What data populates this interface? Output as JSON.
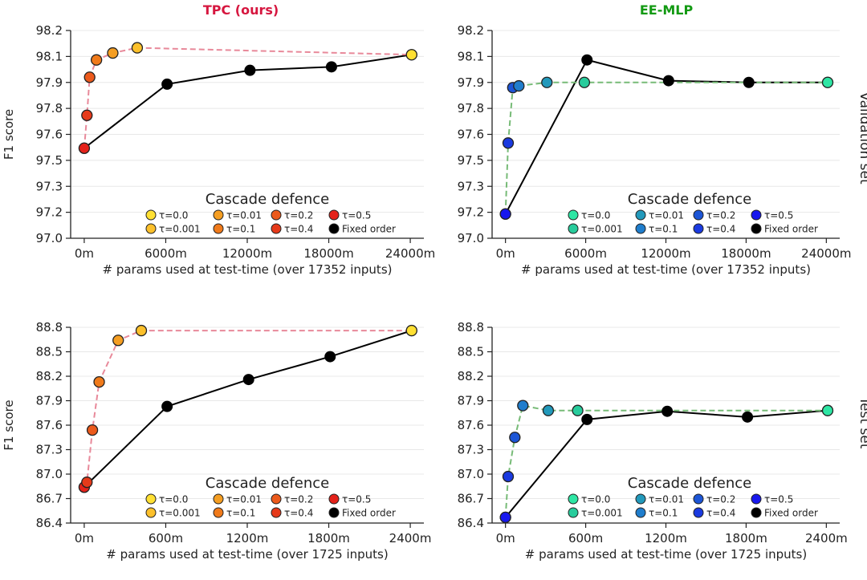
{
  "row_labels": [
    "Validation set",
    "Test set"
  ],
  "legend_title": "Cascade defence",
  "colors": {
    "tpc_line": "#e8899a",
    "ee_line": "#77bb77",
    "fixed": "#000000",
    "tpc_title": "#d6163f",
    "ee_title": "#139a13"
  },
  "chart_data": [
    {
      "id": "tpc-val",
      "type": "scatter",
      "title": "TPC (ours)",
      "title_color": "#d6163f",
      "show_title": true,
      "xlabel": "# params used at test-time (over 17352 inputs)",
      "ylabel": "F1 score",
      "xlim": [
        -1000,
        25000
      ],
      "ylim": [
        97.0,
        98.2
      ],
      "xticks": [
        0,
        6000,
        12000,
        18000,
        24000
      ],
      "xtick_labels": [
        "0m",
        "6000m",
        "12000m",
        "18000m",
        "24000m"
      ],
      "yticks": [
        97.0,
        97.15,
        97.3,
        97.45,
        97.6,
        97.75,
        97.9,
        98.05,
        98.2
      ],
      "ytick_labels": [
        "97.0",
        "97.2",
        "97.3",
        "97.5",
        "97.6",
        "97.8",
        "97.9",
        "98.1",
        "98.2"
      ],
      "cascade_color": "#e8899a",
      "legend": {
        "entries": [
          {
            "label": "τ=0.0",
            "color": "#ffe033"
          },
          {
            "label": "τ=0.001",
            "color": "#fcc02b"
          },
          {
            "label": "τ=0.01",
            "color": "#f59e22"
          },
          {
            "label": "τ=0.1",
            "color": "#f07a1a"
          },
          {
            "label": "τ=0.2",
            "color": "#ec5a1c"
          },
          {
            "label": "τ=0.4",
            "color": "#e63a1a"
          },
          {
            "label": "τ=0.5",
            "color": "#e4221a"
          },
          {
            "label": "Fixed order",
            "color": "#000000"
          }
        ]
      },
      "cascade": [
        {
          "x": 0,
          "y": 97.52,
          "color": "#e4221a"
        },
        {
          "x": 200,
          "y": 97.71,
          "color": "#e63a1a"
        },
        {
          "x": 400,
          "y": 97.93,
          "color": "#ec5a1c"
        },
        {
          "x": 900,
          "y": 98.03,
          "color": "#f07a1a"
        },
        {
          "x": 2100,
          "y": 98.07,
          "color": "#f59e22"
        },
        {
          "x": 3900,
          "y": 98.1,
          "color": "#fcc02b"
        },
        {
          "x": 24100,
          "y": 98.06,
          "color": "#ffe033"
        }
      ],
      "fixed": [
        {
          "x": 0,
          "y": 97.52
        },
        {
          "x": 6100,
          "y": 97.89
        },
        {
          "x": 12200,
          "y": 97.97
        },
        {
          "x": 18200,
          "y": 97.99
        },
        {
          "x": 24100,
          "y": 98.06
        }
      ]
    },
    {
      "id": "ee-val",
      "type": "scatter",
      "title": "EE-MLP",
      "title_color": "#139a13",
      "show_title": true,
      "xlabel": "# params used at test-time (over 17352 inputs)",
      "ylabel": "",
      "xlim": [
        -1000,
        25000
      ],
      "ylim": [
        97.0,
        98.2
      ],
      "xticks": [
        0,
        6000,
        12000,
        18000,
        24000
      ],
      "xtick_labels": [
        "0m",
        "6000m",
        "12000m",
        "18000m",
        "24000m"
      ],
      "yticks": [
        97.0,
        97.15,
        97.3,
        97.45,
        97.6,
        97.75,
        97.9,
        98.05,
        98.2
      ],
      "ytick_labels": [
        "97.0",
        "97.2",
        "97.3",
        "97.5",
        "97.6",
        "97.8",
        "97.9",
        "98.1",
        "98.2"
      ],
      "cascade_color": "#77bb77",
      "legend": {
        "entries": [
          {
            "label": "τ=0.0",
            "color": "#2ee6a4"
          },
          {
            "label": "τ=0.001",
            "color": "#28cc9c"
          },
          {
            "label": "τ=0.01",
            "color": "#2299bb"
          },
          {
            "label": "τ=0.1",
            "color": "#1f7dcc"
          },
          {
            "label": "τ=0.2",
            "color": "#1c55d6"
          },
          {
            "label": "τ=0.4",
            "color": "#1a3ae0"
          },
          {
            "label": "τ=0.5",
            "color": "#1818ee"
          },
          {
            "label": "Fixed order",
            "color": "#000000"
          }
        ]
      },
      "cascade": [
        {
          "x": 0,
          "y": 97.14,
          "color": "#1818ee"
        },
        {
          "x": 200,
          "y": 97.55,
          "color": "#1a3ae0"
        },
        {
          "x": 550,
          "y": 97.87,
          "color": "#1c55d6"
        },
        {
          "x": 1000,
          "y": 97.88,
          "color": "#1f7dcc"
        },
        {
          "x": 3100,
          "y": 97.9,
          "color": "#2299bb"
        },
        {
          "x": 5900,
          "y": 97.9,
          "color": "#28cc9c"
        },
        {
          "x": 24100,
          "y": 97.9,
          "color": "#2ee6a4"
        }
      ],
      "fixed": [
        {
          "x": 0,
          "y": 97.14
        },
        {
          "x": 6100,
          "y": 98.03
        },
        {
          "x": 12200,
          "y": 97.91
        },
        {
          "x": 18200,
          "y": 97.9
        },
        {
          "x": 24100,
          "y": 97.9
        }
      ]
    },
    {
      "id": "tpc-test",
      "type": "scatter",
      "title": "",
      "title_color": "#d6163f",
      "show_title": false,
      "xlabel": "# params used at test-time (over 1725 inputs)",
      "ylabel": "F1 score",
      "xlim": [
        -100,
        2500
      ],
      "ylim": [
        86.4,
        88.8
      ],
      "xticks": [
        0,
        600,
        1200,
        1800,
        2400
      ],
      "xtick_labels": [
        "0m",
        "600m",
        "1200m",
        "1800m",
        "2400m"
      ],
      "yticks": [
        86.4,
        86.7,
        87.0,
        87.3,
        87.6,
        87.9,
        88.2,
        88.5,
        88.8
      ],
      "ytick_labels": [
        "86.4",
        "86.7",
        "87.0",
        "87.3",
        "87.6",
        "87.9",
        "88.2",
        "88.5",
        "88.8"
      ],
      "cascade_color": "#e8899a",
      "legend": {
        "entries": [
          {
            "label": "τ=0.0",
            "color": "#ffe033"
          },
          {
            "label": "τ=0.001",
            "color": "#fcc02b"
          },
          {
            "label": "τ=0.01",
            "color": "#f59e22"
          },
          {
            "label": "τ=0.1",
            "color": "#f07a1a"
          },
          {
            "label": "τ=0.2",
            "color": "#ec5a1c"
          },
          {
            "label": "τ=0.4",
            "color": "#e63a1a"
          },
          {
            "label": "τ=0.5",
            "color": "#e4221a"
          },
          {
            "label": "Fixed order",
            "color": "#000000"
          }
        ]
      },
      "cascade": [
        {
          "x": 0,
          "y": 86.84,
          "color": "#e4221a"
        },
        {
          "x": 20,
          "y": 86.9,
          "color": "#e63a1a"
        },
        {
          "x": 60,
          "y": 87.54,
          "color": "#ec5a1c"
        },
        {
          "x": 110,
          "y": 88.13,
          "color": "#f07a1a"
        },
        {
          "x": 250,
          "y": 88.64,
          "color": "#f59e22"
        },
        {
          "x": 420,
          "y": 88.76,
          "color": "#fcc02b"
        },
        {
          "x": 2410,
          "y": 88.76,
          "color": "#ffe033"
        }
      ],
      "fixed": [
        {
          "x": 0,
          "y": 86.84
        },
        {
          "x": 610,
          "y": 87.83
        },
        {
          "x": 1210,
          "y": 88.16
        },
        {
          "x": 1810,
          "y": 88.44
        },
        {
          "x": 2410,
          "y": 88.76
        }
      ]
    },
    {
      "id": "ee-test",
      "type": "scatter",
      "title": "",
      "title_color": "#139a13",
      "show_title": false,
      "xlabel": "# params used at test-time (over 1725 inputs)",
      "ylabel": "",
      "xlim": [
        -100,
        2500
      ],
      "ylim": [
        86.4,
        88.8
      ],
      "xticks": [
        0,
        600,
        1200,
        1800,
        2400
      ],
      "xtick_labels": [
        "0m",
        "600m",
        "1200m",
        "1800m",
        "2400m"
      ],
      "yticks": [
        86.4,
        86.7,
        87.0,
        87.3,
        87.6,
        87.9,
        88.2,
        88.5,
        88.8
      ],
      "ytick_labels": [
        "86.4",
        "86.7",
        "87.0",
        "87.3",
        "87.6",
        "87.9",
        "88.2",
        "88.5",
        "88.8"
      ],
      "cascade_color": "#77bb77",
      "legend": {
        "entries": [
          {
            "label": "τ=0.0",
            "color": "#2ee6a4"
          },
          {
            "label": "τ=0.001",
            "color": "#28cc9c"
          },
          {
            "label": "τ=0.01",
            "color": "#2299bb"
          },
          {
            "label": "τ=0.1",
            "color": "#1f7dcc"
          },
          {
            "label": "τ=0.2",
            "color": "#1c55d6"
          },
          {
            "label": "τ=0.4",
            "color": "#1a3ae0"
          },
          {
            "label": "τ=0.5",
            "color": "#1818ee"
          },
          {
            "label": "Fixed order",
            "color": "#000000"
          }
        ]
      },
      "cascade": [
        {
          "x": 0,
          "y": 86.47,
          "color": "#1818ee"
        },
        {
          "x": 20,
          "y": 86.97,
          "color": "#1a3ae0"
        },
        {
          "x": 70,
          "y": 87.45,
          "color": "#1c55d6"
        },
        {
          "x": 130,
          "y": 87.84,
          "color": "#1f7dcc"
        },
        {
          "x": 320,
          "y": 87.78,
          "color": "#2299bb"
        },
        {
          "x": 540,
          "y": 87.78,
          "color": "#28cc9c"
        },
        {
          "x": 2410,
          "y": 87.78,
          "color": "#2ee6a4"
        }
      ],
      "fixed": [
        {
          "x": 0,
          "y": 86.47
        },
        {
          "x": 610,
          "y": 87.67
        },
        {
          "x": 1210,
          "y": 87.77
        },
        {
          "x": 1810,
          "y": 87.7
        },
        {
          "x": 2410,
          "y": 87.78
        }
      ]
    }
  ]
}
